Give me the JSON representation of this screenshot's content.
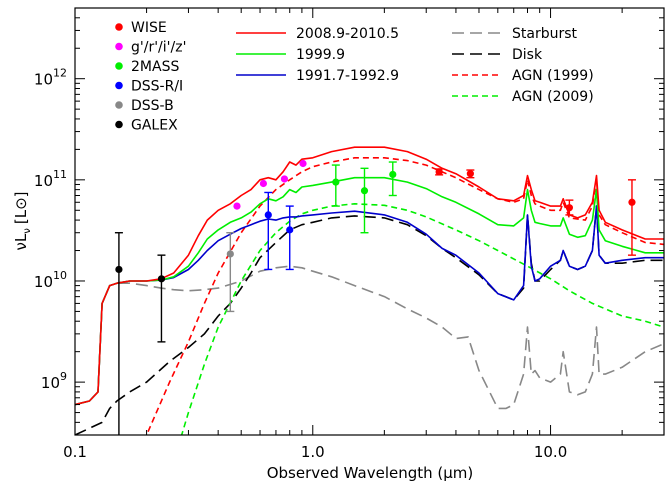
{
  "chart_data": {
    "type": "line",
    "log_x": true,
    "log_y": true,
    "xlim": [
      0.1,
      30
    ],
    "ylim": [
      300000000,
      5000000000000
    ],
    "xlabel": "Observed Wavelength (μm)",
    "ylabel": "νL",
    "ylabel_sub": "ν",
    "ylabel_unit": "[L⊙]",
    "x_ticks": [
      {
        "value": 0.1,
        "label": "0.1"
      },
      {
        "value": 1.0,
        "label": "1.0"
      },
      {
        "value": 10.0,
        "label": "10.0"
      }
    ],
    "y_ticks": [
      {
        "value": 1000000000,
        "mantissa": "10",
        "exp": "9"
      },
      {
        "value": 10000000000,
        "mantissa": "10",
        "exp": "10"
      },
      {
        "value": 100000000000,
        "mantissa": "10",
        "exp": "11"
      },
      {
        "value": 1000000000000,
        "mantissa": "10",
        "exp": "12"
      }
    ],
    "grid": false,
    "legend_position": "top",
    "legend_points": [
      {
        "name": "WISE",
        "color": "#ff0000"
      },
      {
        "name": "g'/r'/i'/z'",
        "color": "#ff00ff"
      },
      {
        "name": "2MASS",
        "color": "#00ee00"
      },
      {
        "name": "DSS-R/I",
        "color": "#0000ff"
      },
      {
        "name": "DSS-B",
        "color": "#888888"
      },
      {
        "name": "GALEX",
        "color": "#000000"
      }
    ],
    "series": [
      {
        "name": "2008.9-2010.5",
        "color": "#ff0000",
        "dash": "solid",
        "x": [
          0.1,
          0.115,
          0.125,
          0.13,
          0.14,
          0.15,
          0.17,
          0.2,
          0.23,
          0.26,
          0.3,
          0.33,
          0.36,
          0.4,
          0.45,
          0.5,
          0.55,
          0.6,
          0.65,
          0.7,
          0.75,
          0.8,
          0.85,
          0.9,
          1.0,
          1.2,
          1.5,
          2.0,
          2.5,
          3.0,
          3.5,
          4.0,
          5.0,
          6.0,
          7.0,
          7.7,
          8.0,
          8.3,
          8.6,
          9.0,
          10.0,
          11.0,
          11.3,
          12.0,
          13.0,
          14.0,
          15.0,
          15.6,
          16.0,
          17.0,
          20.0,
          25.0,
          30.0
        ],
        "y": [
          600000000.0,
          650000000.0,
          800000000.0,
          6000000000.0,
          9000000000.0,
          9500000000.0,
          10000000000.0,
          10000000000.0,
          10500000000.0,
          12000000000.0,
          18000000000.0,
          28000000000.0,
          40000000000.0,
          50000000000.0,
          58000000000.0,
          70000000000.0,
          80000000000.0,
          100000000000.0,
          105000000000.0,
          100000000000.0,
          120000000000.0,
          150000000000.0,
          140000000000.0,
          160000000000.0,
          165000000000.0,
          190000000000.0,
          210000000000.0,
          210000000000.0,
          190000000000.0,
          160000000000.0,
          130000000000.0,
          115000000000.0,
          85000000000.0,
          65000000000.0,
          62000000000.0,
          70000000000.0,
          110000000000.0,
          80000000000.0,
          62000000000.0,
          60000000000.0,
          55000000000.0,
          55000000000.0,
          65000000000.0,
          45000000000.0,
          42000000000.0,
          45000000000.0,
          60000000000.0,
          110000000000.0,
          50000000000.0,
          38000000000.0,
          32000000000.0,
          26000000000.0,
          26000000000.0
        ]
      },
      {
        "name": "1999.9",
        "color": "#00ee00",
        "dash": "solid",
        "x": [
          0.1,
          0.115,
          0.125,
          0.13,
          0.14,
          0.15,
          0.17,
          0.2,
          0.23,
          0.26,
          0.3,
          0.33,
          0.36,
          0.4,
          0.45,
          0.5,
          0.55,
          0.6,
          0.65,
          0.7,
          0.75,
          0.8,
          0.85,
          0.9,
          1.0,
          1.2,
          1.5,
          2.0,
          2.5,
          3.0,
          3.5,
          4.0,
          5.0,
          6.0,
          7.0,
          7.7,
          8.0,
          8.3,
          8.6,
          9.0,
          10.0,
          11.0,
          11.3,
          12.0,
          13.0,
          14.0,
          15.0,
          15.6,
          16.0,
          17.0,
          20.0,
          25.0,
          30.0
        ],
        "y": [
          600000000.0,
          650000000.0,
          800000000.0,
          6000000000.0,
          9000000000.0,
          9500000000.0,
          10000000000.0,
          10000000000.0,
          10200000000.0,
          11000000000.0,
          14000000000.0,
          19000000000.0,
          26000000000.0,
          32000000000.0,
          38000000000.0,
          42000000000.0,
          48000000000.0,
          58000000000.0,
          65000000000.0,
          62000000000.0,
          68000000000.0,
          80000000000.0,
          75000000000.0,
          85000000000.0,
          88000000000.0,
          95000000000.0,
          105000000000.0,
          105000000000.0,
          95000000000.0,
          82000000000.0,
          68000000000.0,
          60000000000.0,
          46000000000.0,
          36000000000.0,
          35000000000.0,
          42000000000.0,
          80000000000.0,
          50000000000.0,
          38000000000.0,
          37000000000.0,
          35000000000.0,
          35000000000.0,
          42000000000.0,
          29000000000.0,
          27000000000.0,
          28000000000.0,
          40000000000.0,
          80000000000.0,
          32000000000.0,
          25000000000.0,
          22000000000.0,
          19000000000.0,
          19000000000.0
        ]
      },
      {
        "name": "1991.7-1992.9",
        "color": "#0000cc",
        "dash": "solid",
        "x": [
          0.1,
          0.115,
          0.125,
          0.13,
          0.14,
          0.15,
          0.17,
          0.2,
          0.23,
          0.26,
          0.3,
          0.33,
          0.36,
          0.4,
          0.45,
          0.5,
          0.55,
          0.6,
          0.65,
          0.7,
          0.75,
          0.8,
          0.85,
          0.9,
          1.0,
          1.2,
          1.5,
          2.0,
          2.5,
          3.0,
          3.5,
          4.0,
          5.0,
          6.0,
          7.0,
          7.7,
          8.0,
          8.3,
          8.6,
          9.0,
          10.0,
          11.0,
          11.3,
          12.0,
          13.0,
          14.0,
          15.0,
          15.6,
          16.0,
          17.0,
          20.0,
          25.0,
          30.0
        ],
        "y": [
          600000000.0,
          650000000.0,
          800000000.0,
          6000000000.0,
          9000000000.0,
          9500000000.0,
          10000000000.0,
          10000000000.0,
          10200000000.0,
          10800000000.0,
          13000000000.0,
          16000000000.0,
          20000000000.0,
          25000000000.0,
          29000000000.0,
          33000000000.0,
          36000000000.0,
          39000000000.0,
          41000000000.0,
          40000000000.0,
          42000000000.0,
          43000000000.0,
          43000000000.0,
          44000000000.0,
          45000000000.0,
          47000000000.0,
          49000000000.0,
          45000000000.0,
          38000000000.0,
          29000000000.0,
          21000000000.0,
          18000000000.0,
          12000000000.0,
          7500000000.0,
          6500000000.0,
          9000000000.0,
          45000000000.0,
          14000000000.0,
          10000000000.0,
          10500000000.0,
          14000000000.0,
          16000000000.0,
          20000000000.0,
          14000000000.0,
          13000000000.0,
          14000000000.0,
          20000000000.0,
          55000000000.0,
          18000000000.0,
          15000000000.0,
          16000000000.0,
          17000000000.0,
          17000000000.0
        ]
      },
      {
        "name": "Starburst",
        "color": "#888888",
        "dash": "longdash",
        "x": [
          0.1,
          0.115,
          0.125,
          0.13,
          0.14,
          0.15,
          0.17,
          0.2,
          0.23,
          0.26,
          0.3,
          0.35,
          0.4,
          0.5,
          0.6,
          0.7,
          0.8,
          0.9,
          1.0,
          1.2,
          1.5,
          2.0,
          2.5,
          3.0,
          3.5,
          4.0,
          4.5,
          5.0,
          6.0,
          6.5,
          7.0,
          7.7,
          8.0,
          8.3,
          8.6,
          9.0,
          10.0,
          11.0,
          11.3,
          12.0,
          13.0,
          14.0,
          15.0,
          15.6,
          16.0,
          17.0,
          20.0,
          25.0,
          30.0
        ],
        "y": [
          600000000.0,
          650000000.0,
          800000000.0,
          6000000000.0,
          9000000000.0,
          9500000000.0,
          9500000000.0,
          9000000000.0,
          8500000000.0,
          8200000000.0,
          8000000000.0,
          8200000000.0,
          8500000000.0,
          10000000000.0,
          12500000000.0,
          13500000000.0,
          14000000000.0,
          13500000000.0,
          12500000000.0,
          11000000000.0,
          9000000000.0,
          7000000000.0,
          5300000000.0,
          4300000000.0,
          3500000000.0,
          2700000000.0,
          2800000000.0,
          1300000000.0,
          550000000.0,
          550000000.0,
          600000000.0,
          1200000000.0,
          3500000000.0,
          1200000000.0,
          1300000000.0,
          1100000000.0,
          1000000000.0,
          1200000000.0,
          2000000000.0,
          800000000.0,
          750000000.0,
          800000000.0,
          1200000000.0,
          3500000000.0,
          1200000000.0,
          1200000000.0,
          1400000000.0,
          2000000000.0,
          2400000000.0
        ]
      },
      {
        "name": "Disk",
        "color": "#000000",
        "dash": "longdash",
        "x": [
          0.1,
          0.13,
          0.14,
          0.15,
          0.17,
          0.2,
          0.25,
          0.3,
          0.35,
          0.4,
          0.45,
          0.5,
          0.55,
          0.6,
          0.7,
          0.8,
          0.9,
          1.0,
          1.2,
          1.5,
          2.0,
          2.5,
          3.0,
          3.5,
          4.0,
          5.0,
          6.0,
          7.0,
          7.7,
          8.0,
          8.3,
          8.6,
          9.0,
          10.0,
          11.0,
          11.3,
          12.0,
          13.0,
          14.0,
          15.0,
          15.6,
          16.0,
          17.0,
          20.0,
          25.0,
          30.0
        ],
        "y": [
          300000000.0,
          400000000.0,
          550000000.0,
          650000000.0,
          800000000.0,
          1000000000.0,
          1600000000.0,
          2200000000.0,
          3000000000.0,
          4500000000.0,
          6000000000.0,
          8500000000.0,
          12000000000.0,
          17000000000.0,
          24000000000.0,
          32000000000.0,
          36000000000.0,
          38000000000.0,
          42000000000.0,
          44000000000.0,
          42000000000.0,
          36000000000.0,
          28000000000.0,
          21000000000.0,
          17000000000.0,
          11500000000.0,
          7500000000.0,
          6500000000.0,
          8500000000.0,
          45000000000.0,
          15000000000.0,
          10000000000.0,
          10000000000.0,
          13000000000.0,
          16000000000.0,
          20000000000.0,
          14000000000.0,
          13000000000.0,
          14000000000.0,
          20000000000.0,
          55000000000.0,
          18000000000.0,
          15000000000.0,
          15000000000.0,
          16000000000.0,
          16000000000.0
        ]
      },
      {
        "name": "AGN (1999)",
        "color": "#ff0000",
        "dash": "shortdash",
        "x": [
          0.16,
          0.2,
          0.25,
          0.3,
          0.35,
          0.4,
          0.5,
          0.6,
          0.7,
          0.8,
          0.9,
          1.0,
          1.2,
          1.5,
          2.0,
          2.5,
          3.0,
          4.0,
          5.0,
          6.0,
          7.0,
          7.7,
          8.0,
          8.3,
          8.6,
          9.0,
          10.0,
          11.0,
          11.3,
          12.0,
          14.0,
          15.0,
          15.6,
          16.0,
          17.0,
          20.0,
          25.0,
          30.0
        ],
        "y": [
          120000000.0,
          300000000.0,
          1000000000.0,
          2500000000.0,
          6000000000.0,
          12000000000.0,
          30000000000.0,
          55000000000.0,
          80000000000.0,
          100000000000.0,
          120000000000.0,
          135000000000.0,
          150000000000.0,
          165000000000.0,
          165000000000.0,
          155000000000.0,
          140000000000.0,
          105000000000.0,
          80000000000.0,
          65000000000.0,
          60000000000.0,
          65000000000.0,
          100000000000.0,
          70000000000.0,
          58000000000.0,
          55000000000.0,
          50000000000.0,
          50000000000.0,
          60000000000.0,
          42000000000.0,
          40000000000.0,
          55000000000.0,
          100000000000.0,
          45000000000.0,
          36000000000.0,
          30000000000.0,
          24000000000.0,
          23000000000.0
        ]
      },
      {
        "name": "AGN (2009)",
        "color": "#00ee00",
        "dash": "shortdash",
        "x": [
          0.25,
          0.3,
          0.35,
          0.4,
          0.5,
          0.6,
          0.7,
          0.8,
          0.9,
          1.0,
          1.2,
          1.5,
          2.0,
          2.5,
          3.0,
          4.0,
          5.0,
          6.0,
          8.0,
          10.0,
          12.0,
          15.0,
          20.0,
          25.0,
          30.0
        ],
        "y": [
          120000000.0,
          500000000.0,
          1500000000.0,
          3500000000.0,
          10000000000.0,
          20000000000.0,
          30000000000.0,
          39000000000.0,
          46000000000.0,
          50000000000.0,
          55000000000.0,
          58000000000.0,
          56000000000.0,
          50000000000.0,
          43000000000.0,
          32000000000.0,
          25000000000.0,
          20000000000.0,
          14000000000.0,
          10500000000.0,
          8000000000.0,
          6000000000.0,
          4500000000.0,
          4000000000.0,
          3500000000.0
        ]
      }
    ],
    "points": [
      {
        "group": "WISE",
        "color": "#ff0000",
        "x": 3.4,
        "y": 120000000000.0,
        "ylo": 112000000000.0,
        "yhi": 128000000000.0
      },
      {
        "group": "WISE",
        "color": "#ff0000",
        "x": 4.6,
        "y": 115000000000.0,
        "ylo": 105000000000.0,
        "yhi": 125000000000.0
      },
      {
        "group": "WISE",
        "color": "#ff0000",
        "x": 12.0,
        "y": 53000000000.0,
        "ylo": 45000000000.0,
        "yhi": 63000000000.0
      },
      {
        "group": "WISE",
        "color": "#ff0000",
        "x": 22.0,
        "y": 60000000000.0,
        "ylo": 18000000000.0,
        "yhi": 100000000000.0
      },
      {
        "group": "g'/r'/i'/z'",
        "color": "#ff00ff",
        "x": 0.48,
        "y": 55000000000.0,
        "ylo": null,
        "yhi": null
      },
      {
        "group": "g'/r'/i'/z'",
        "color": "#ff00ff",
        "x": 0.62,
        "y": 92000000000.0,
        "ylo": null,
        "yhi": null
      },
      {
        "group": "g'/r'/i'/z'",
        "color": "#ff00ff",
        "x": 0.76,
        "y": 102000000000.0,
        "ylo": null,
        "yhi": null
      },
      {
        "group": "g'/r'/i'/z'",
        "color": "#ff00ff",
        "x": 0.91,
        "y": 145000000000.0,
        "ylo": null,
        "yhi": null
      },
      {
        "group": "2MASS",
        "color": "#00ee00",
        "x": 1.25,
        "y": 95000000000.0,
        "ylo": 55000000000.0,
        "yhi": 140000000000.0
      },
      {
        "group": "2MASS",
        "color": "#00ee00",
        "x": 1.65,
        "y": 78000000000.0,
        "ylo": 30000000000.0,
        "yhi": 130000000000.0
      },
      {
        "group": "2MASS",
        "color": "#00ee00",
        "x": 2.17,
        "y": 113000000000.0,
        "ylo": 70000000000.0,
        "yhi": 150000000000.0
      },
      {
        "group": "DSS-R/I",
        "color": "#0000ff",
        "x": 0.65,
        "y": 45000000000.0,
        "ylo": 13000000000.0,
        "yhi": 75000000000.0
      },
      {
        "group": "DSS-R/I",
        "color": "#0000ff",
        "x": 0.8,
        "y": 32000000000.0,
        "ylo": 13000000000.0,
        "yhi": 55000000000.0
      },
      {
        "group": "DSS-B",
        "color": "#888888",
        "x": 0.45,
        "y": 18500000000.0,
        "ylo": 5000000000.0,
        "yhi": 30000000000.0
      },
      {
        "group": "GALEX",
        "color": "#000000",
        "x": 0.153,
        "y": 13000000000.0,
        "ylo": 200000000.0,
        "yhi": 30000000000.0
      },
      {
        "group": "GALEX",
        "color": "#000000",
        "x": 0.231,
        "y": 10500000000.0,
        "ylo": 2500000000.0,
        "yhi": 18000000000.0
      }
    ]
  }
}
